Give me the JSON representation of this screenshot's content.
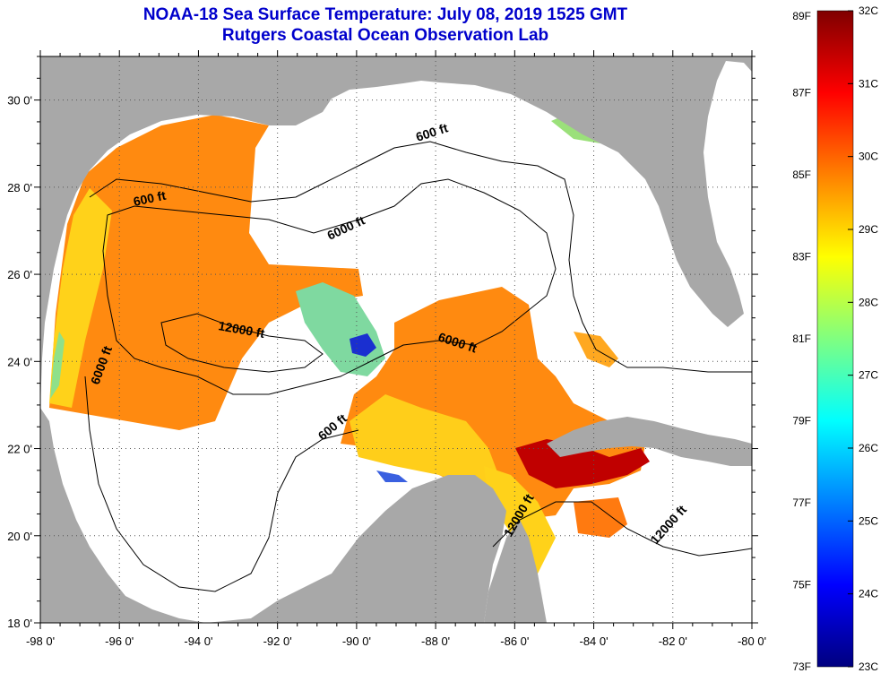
{
  "title_line1": "NOAA-18 Sea Surface Temperature:  July 08, 2019 1525 GMT",
  "title_line2": "Rutgers Coastal Ocean Observation Lab",
  "title_color": "#0000CC",
  "colors": {
    "land": "#A8A8A8",
    "ocean_nodata": "#FFFFFF",
    "contour": "#000000"
  },
  "map": {
    "lon_range": [
      -98,
      -80
    ],
    "lat_range": [
      18,
      31
    ],
    "lon_ticks": [
      "-98 0'",
      "-96 0'",
      "-94 0'",
      "-92 0'",
      "-90 0'",
      "-88 0'",
      "-86 0'",
      "-84 0'",
      "-82 0'",
      "-80 0'"
    ],
    "lat_ticks": [
      "18 0'",
      "20 0'",
      "22 0'",
      "24 0'",
      "26 0'",
      "28 0'",
      "30 0'"
    ],
    "contour_labels": [
      "600 ft",
      "6000 ft",
      "12000 ft",
      "6000 ft",
      "6000 ft",
      "600 ft",
      "600 ft",
      "12000 ft",
      "12000 ft"
    ]
  },
  "colorbar": {
    "f_labels": [
      "89F",
      "87F",
      "85F",
      "83F",
      "81F",
      "79F",
      "77F",
      "75F",
      "73F"
    ],
    "c_labels": [
      "32C",
      "31C",
      "30C",
      "29C",
      "28C",
      "27C",
      "26C",
      "25C",
      "24C",
      "23C"
    ],
    "colors": [
      "#00007f",
      "#0000ff",
      "#0080ff",
      "#00ffff",
      "#80ff80",
      "#ffff00",
      "#ff8000",
      "#ff0000",
      "#7f0000"
    ]
  }
}
